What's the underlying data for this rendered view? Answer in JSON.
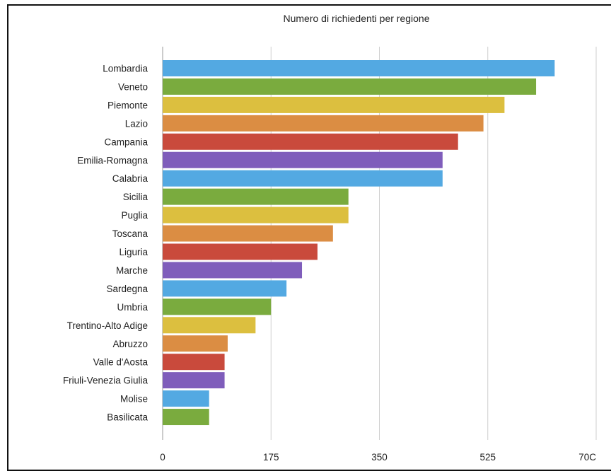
{
  "chart_data": {
    "type": "bar",
    "orientation": "horizontal",
    "title": "Numero di richiedenti per regione",
    "xlabel": "",
    "ylabel": "",
    "xlim": [
      0,
      700
    ],
    "ticks": [
      "0",
      "175",
      "350",
      "525",
      "70C"
    ],
    "grid": true,
    "categories": [
      "Lombardia",
      "Veneto",
      "Piemonte",
      "Lazio",
      "Campania",
      "Emilia-Romagna",
      "Calabria",
      "Sicilia",
      "Puglia",
      "Toscana",
      "Liguria",
      "Marche",
      "Sardegna",
      "Umbria",
      "Trentino-Alto Adige",
      "Abruzzo",
      "Valle d'Aosta",
      "Friuli-Venezia Giulia",
      "Molise",
      "Basilicata"
    ],
    "values": [
      633,
      603,
      552,
      518,
      477,
      452,
      452,
      300,
      300,
      275,
      250,
      225,
      200,
      175,
      150,
      105,
      100,
      100,
      75,
      75
    ],
    "colors": [
      "#53a9e2",
      "#7aab3e",
      "#dcbf3f",
      "#db8d43",
      "#c94a3c",
      "#7f5dbb",
      "#53a9e2",
      "#7aab3e",
      "#dcbf3f",
      "#db8d43",
      "#c94a3c",
      "#7f5dbb",
      "#53a9e2",
      "#7aab3e",
      "#dcbf3f",
      "#db8d43",
      "#c94a3c",
      "#7f5dbb",
      "#53a9e2",
      "#7aab3e"
    ]
  }
}
